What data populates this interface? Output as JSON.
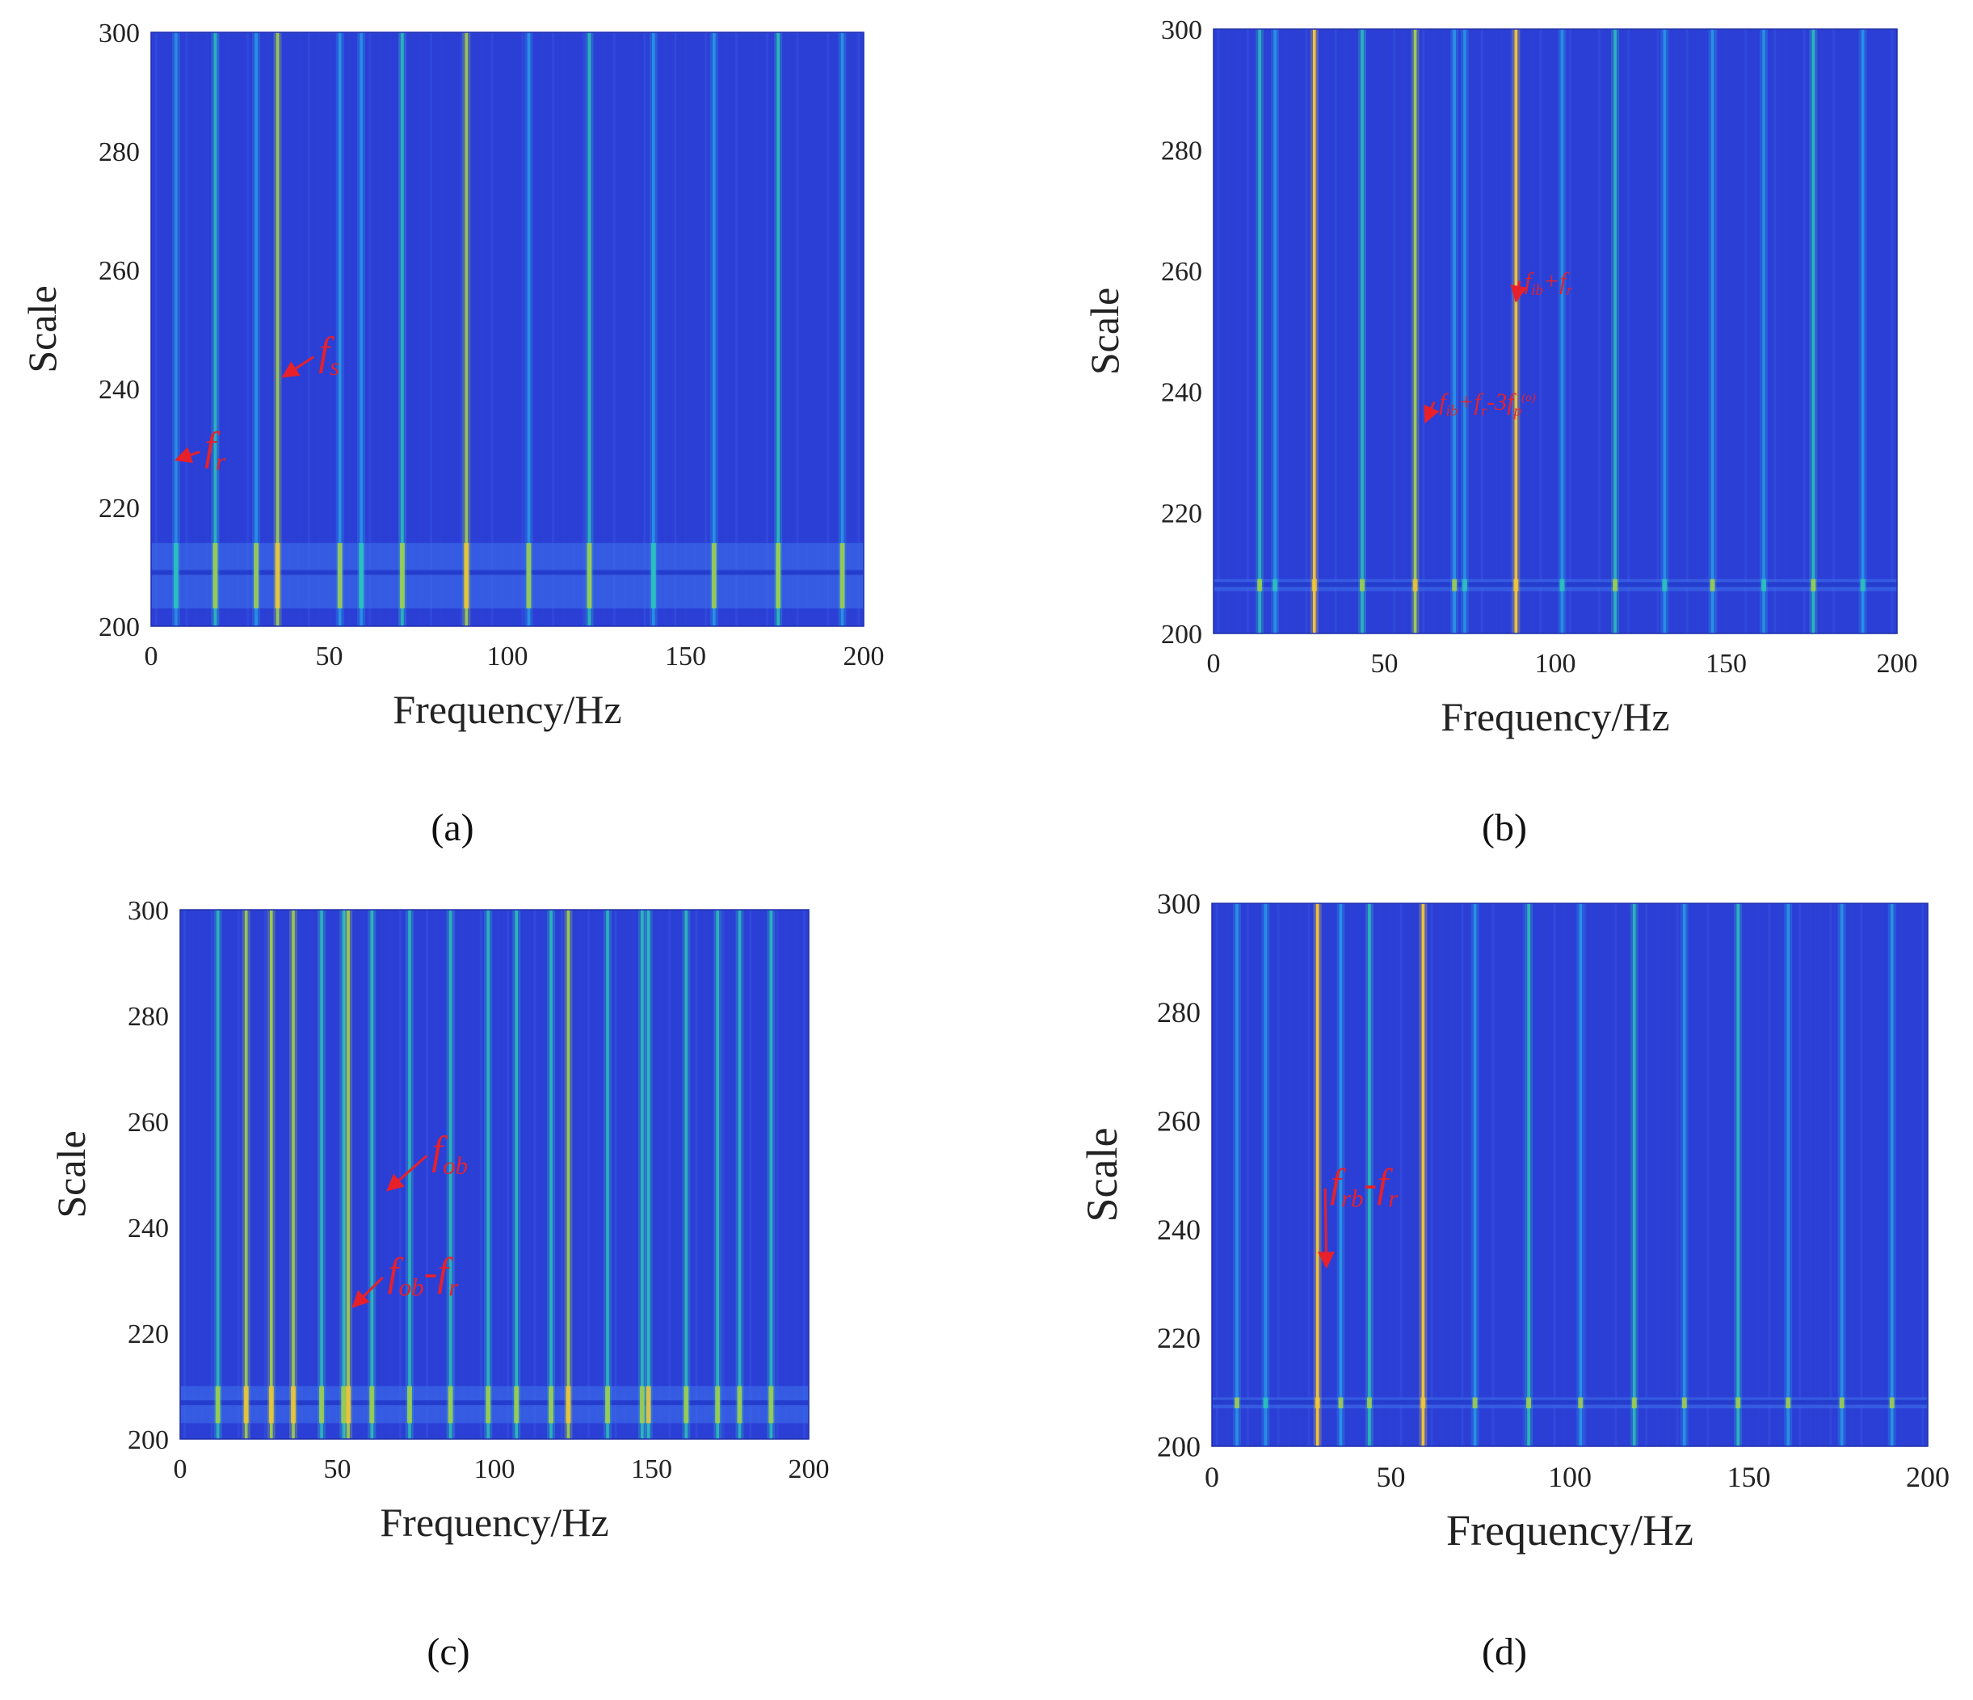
{
  "colors": {
    "background": "#2b3fd6",
    "annotation": "#e8202a",
    "colormap": [
      "#2438d0",
      "#2f5ce8",
      "#27a2e6",
      "#2cc7b8",
      "#a6d048",
      "#f0c53a"
    ]
  },
  "chart_data": [
    {
      "panel": "(a)",
      "type": "heatmap",
      "xlabel": "Frequency/Hz",
      "ylabel": "Scale",
      "xlim": [
        0,
        200
      ],
      "ylim": [
        200,
        300
      ],
      "xticks": [
        "0",
        "50",
        "100",
        "150",
        "200"
      ],
      "yticks": [
        "200",
        "220",
        "240",
        "260",
        "280",
        "300"
      ],
      "low_band_scales": [
        203,
        214
      ],
      "lines": [
        {
          "f": 7,
          "level": 0.35
        },
        {
          "f": 18,
          "level": 0.5
        },
        {
          "f": 29.5,
          "level": 0.45
        },
        {
          "f": 35.5,
          "level": 0.7
        },
        {
          "f": 53,
          "level": 0.45
        },
        {
          "f": 59,
          "level": 0.4
        },
        {
          "f": 70.5,
          "level": 0.5
        },
        {
          "f": 88.5,
          "level": 0.7
        },
        {
          "f": 106,
          "level": 0.45
        },
        {
          "f": 123,
          "level": 0.5
        },
        {
          "f": 141,
          "level": 0.4
        },
        {
          "f": 158,
          "level": 0.45
        },
        {
          "f": 176,
          "level": 0.6
        },
        {
          "f": 194,
          "level": 0.45
        }
      ],
      "annotations": [
        {
          "label": "f",
          "sub": "r",
          "sup": "",
          "text_at": [
            15,
            228
          ],
          "arrow_to": [
            7,
            228
          ]
        },
        {
          "label": "f",
          "sub": "s",
          "sup": "",
          "text_at": [
            47,
            244
          ],
          "arrow_to": [
            37,
            242
          ]
        }
      ]
    },
    {
      "panel": "(b)",
      "type": "heatmap",
      "xlabel": "Frequency/Hz",
      "ylabel": "Scale",
      "xlim": [
        0,
        200
      ],
      "ylim": [
        200,
        300
      ],
      "xticks": [
        "0",
        "50",
        "100",
        "150",
        "200"
      ],
      "yticks": [
        "200",
        "220",
        "240",
        "260",
        "280",
        "300"
      ],
      "low_band_scales": [
        207,
        209
      ],
      "lines": [
        {
          "f": 13.5,
          "level": 0.5
        },
        {
          "f": 18,
          "level": 0.4
        },
        {
          "f": 29.5,
          "level": 0.95
        },
        {
          "f": 43.5,
          "level": 0.5
        },
        {
          "f": 59,
          "level": 0.85
        },
        {
          "f": 70.5,
          "level": 0.45
        },
        {
          "f": 73.5,
          "level": 0.4
        },
        {
          "f": 88.5,
          "level": 0.9
        },
        {
          "f": 102,
          "level": 0.4
        },
        {
          "f": 117.5,
          "level": 0.55
        },
        {
          "f": 132,
          "level": 0.4
        },
        {
          "f": 146,
          "level": 0.45
        },
        {
          "f": 161,
          "level": 0.4
        },
        {
          "f": 175.5,
          "level": 0.55
        },
        {
          "f": 190,
          "level": 0.4
        }
      ],
      "annotations": [
        {
          "label": "f",
          "sub": "ib",
          "sup": "",
          "suffix": "+f",
          "suffix_sub": "r",
          "text_at": [
            91,
            257
          ],
          "arrow_to": [
            88.5,
            255
          ]
        },
        {
          "label": "f",
          "sub": "ib",
          "sup": "",
          "suffix": "+f",
          "suffix_sub": "r",
          "tail": "-3f",
          "tail_sub": "p",
          "tail_sup": "(o)",
          "text_at": [
            66,
            237
          ],
          "arrow_to": [
            62,
            235
          ]
        }
      ]
    },
    {
      "panel": "(c)",
      "type": "heatmap",
      "xlabel": "Frequency/Hz",
      "ylabel": "Scale",
      "xlim": [
        0,
        200
      ],
      "ylim": [
        200,
        300
      ],
      "xticks": [
        "0",
        "50",
        "100",
        "150",
        "200"
      ],
      "yticks": [
        "200",
        "220",
        "240",
        "260",
        "280",
        "300"
      ],
      "low_band_scales": [
        203,
        210
      ],
      "lines": [
        {
          "f": 12,
          "level": 0.5
        },
        {
          "f": 21,
          "level": 0.7
        },
        {
          "f": 29,
          "level": 0.8
        },
        {
          "f": 36,
          "level": 0.7
        },
        {
          "f": 45,
          "level": 0.5
        },
        {
          "f": 52,
          "level": 0.55
        },
        {
          "f": 53.5,
          "level": 0.8
        },
        {
          "f": 61,
          "level": 0.55
        },
        {
          "f": 73,
          "level": 0.5
        },
        {
          "f": 86,
          "level": 0.55
        },
        {
          "f": 98,
          "level": 0.5
        },
        {
          "f": 107,
          "level": 0.6
        },
        {
          "f": 118,
          "level": 0.55
        },
        {
          "f": 123.5,
          "level": 0.75
        },
        {
          "f": 136,
          "level": 0.5
        },
        {
          "f": 147,
          "level": 0.55
        },
        {
          "f": 149,
          "level": 0.65
        },
        {
          "f": 161,
          "level": 0.5
        },
        {
          "f": 171,
          "level": 0.55
        },
        {
          "f": 178,
          "level": 0.5
        },
        {
          "f": 188,
          "level": 0.5
        }
      ],
      "annotations": [
        {
          "label": "f",
          "sub": "ob",
          "sup": "",
          "text_at": [
            80,
            252
          ],
          "arrow_to": [
            66,
            247
          ]
        },
        {
          "label": "f",
          "sub": "ob",
          "sup": "",
          "suffix": "-f",
          "suffix_sub": "r",
          "text_at": [
            66,
            229
          ],
          "arrow_to": [
            55,
            225
          ]
        }
      ]
    },
    {
      "panel": "(d)",
      "type": "heatmap",
      "xlabel": "Frequency/Hz",
      "ylabel": "Scale",
      "xlim": [
        0,
        200
      ],
      "ylim": [
        200,
        300
      ],
      "xticks": [
        "0",
        "50",
        "100",
        "150",
        "200"
      ],
      "yticks": [
        "200",
        "220",
        "240",
        "260",
        "280",
        "300"
      ],
      "low_band_scales": [
        207,
        209
      ],
      "lines": [
        {
          "f": 7,
          "level": 0.45
        },
        {
          "f": 15,
          "level": 0.4
        },
        {
          "f": 29.5,
          "level": 0.95
        },
        {
          "f": 36,
          "level": 0.45
        },
        {
          "f": 44,
          "level": 0.5
        },
        {
          "f": 59,
          "level": 0.9
        },
        {
          "f": 73.5,
          "level": 0.45
        },
        {
          "f": 88.5,
          "level": 0.6
        },
        {
          "f": 103,
          "level": 0.45
        },
        {
          "f": 118,
          "level": 0.5
        },
        {
          "f": 132,
          "level": 0.45
        },
        {
          "f": 147,
          "level": 0.5
        },
        {
          "f": 161,
          "level": 0.45
        },
        {
          "f": 176,
          "level": 0.45
        },
        {
          "f": 190,
          "level": 0.45
        }
      ],
      "annotations": [
        {
          "label": "f",
          "sub": "rb",
          "sup": "",
          "suffix": "-f",
          "suffix_sub": "r",
          "text_at": [
            33,
            246
          ],
          "arrow_to": [
            32,
            233
          ]
        }
      ]
    }
  ]
}
